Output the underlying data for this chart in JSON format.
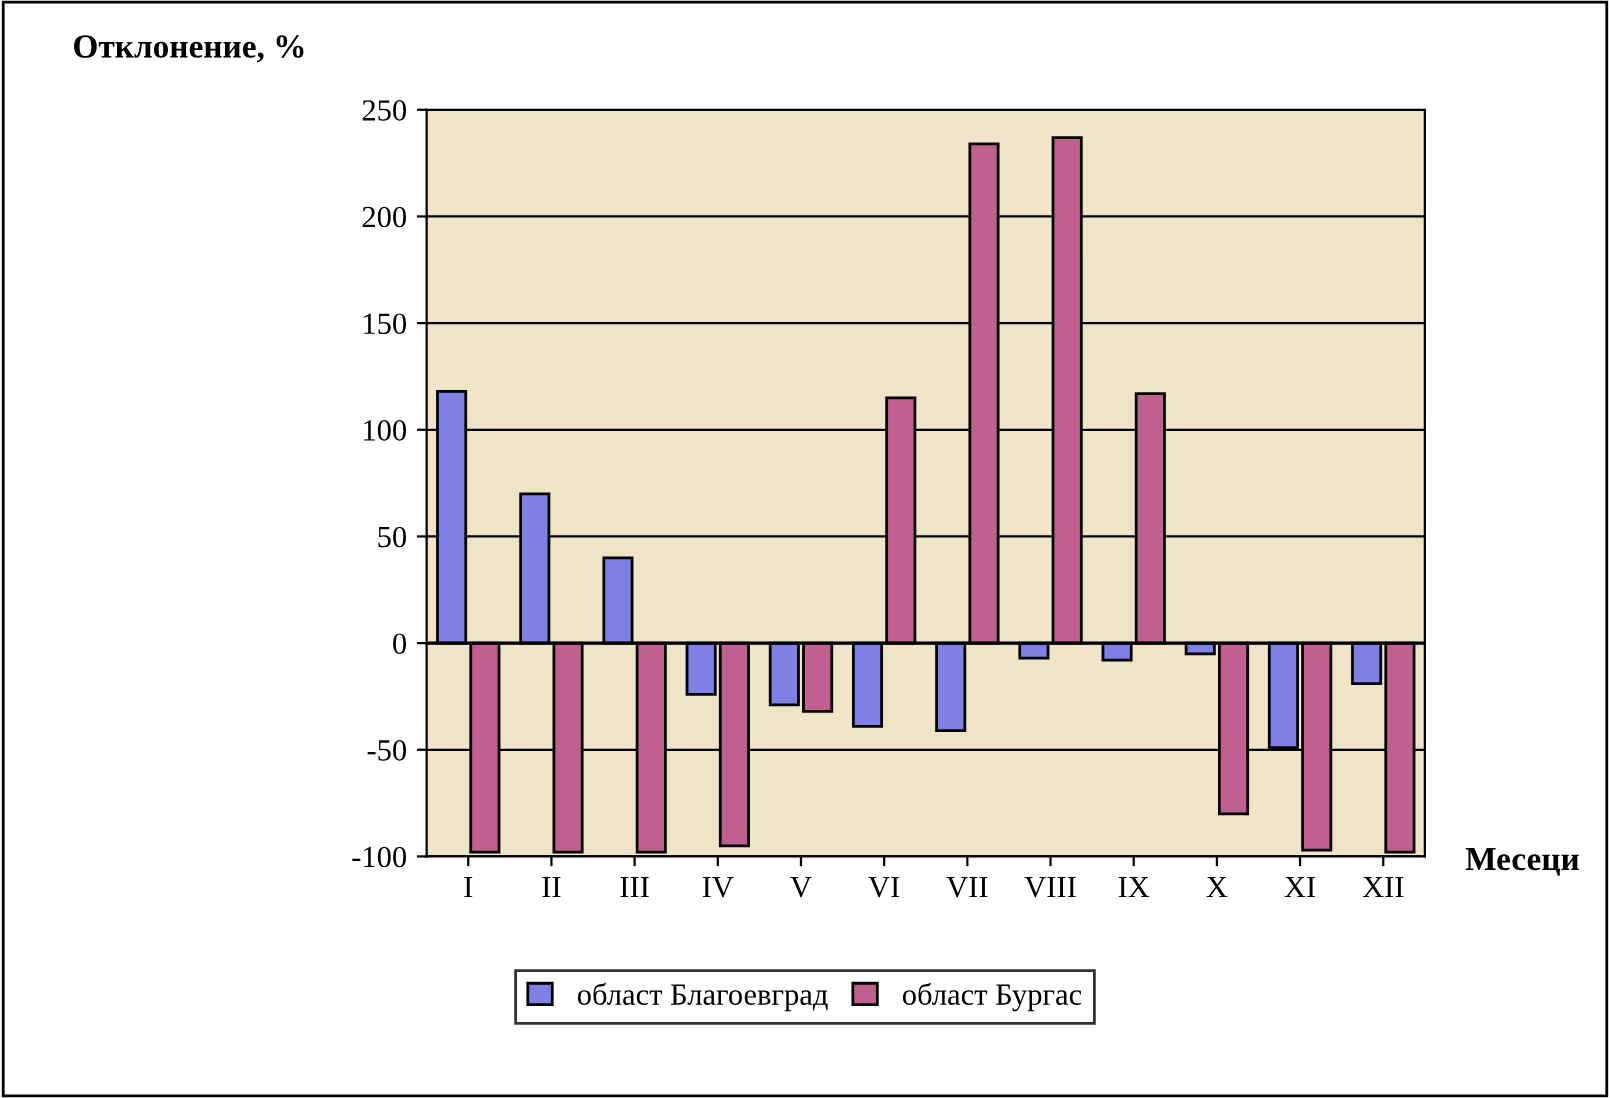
{
  "chart_data": {
    "type": "bar",
    "ylabel": "Отклонение, %",
    "xlabel": "Месеци",
    "categories": [
      "I",
      "II",
      "III",
      "IV",
      "V",
      "VI",
      "VII",
      "VIII",
      "IX",
      "X",
      "XI",
      "XII"
    ],
    "series": [
      {
        "name": "област Благоевград",
        "color": "#7f7fe6",
        "values": [
          118,
          70,
          40,
          -24,
          -29,
          -39,
          -41,
          -7,
          -8,
          -5,
          -49,
          -19
        ]
      },
      {
        "name": "област Бургас",
        "color": "#c0608f",
        "values": [
          -98,
          -98,
          -98,
          -95,
          -32,
          115,
          234,
          237,
          117,
          -80,
          -97,
          -98
        ]
      }
    ],
    "ylim": [
      -100,
      250
    ],
    "yticks": [
      -100,
      -50,
      0,
      50,
      100,
      150,
      200,
      250
    ],
    "grid": "y",
    "legend": "bottom"
  }
}
